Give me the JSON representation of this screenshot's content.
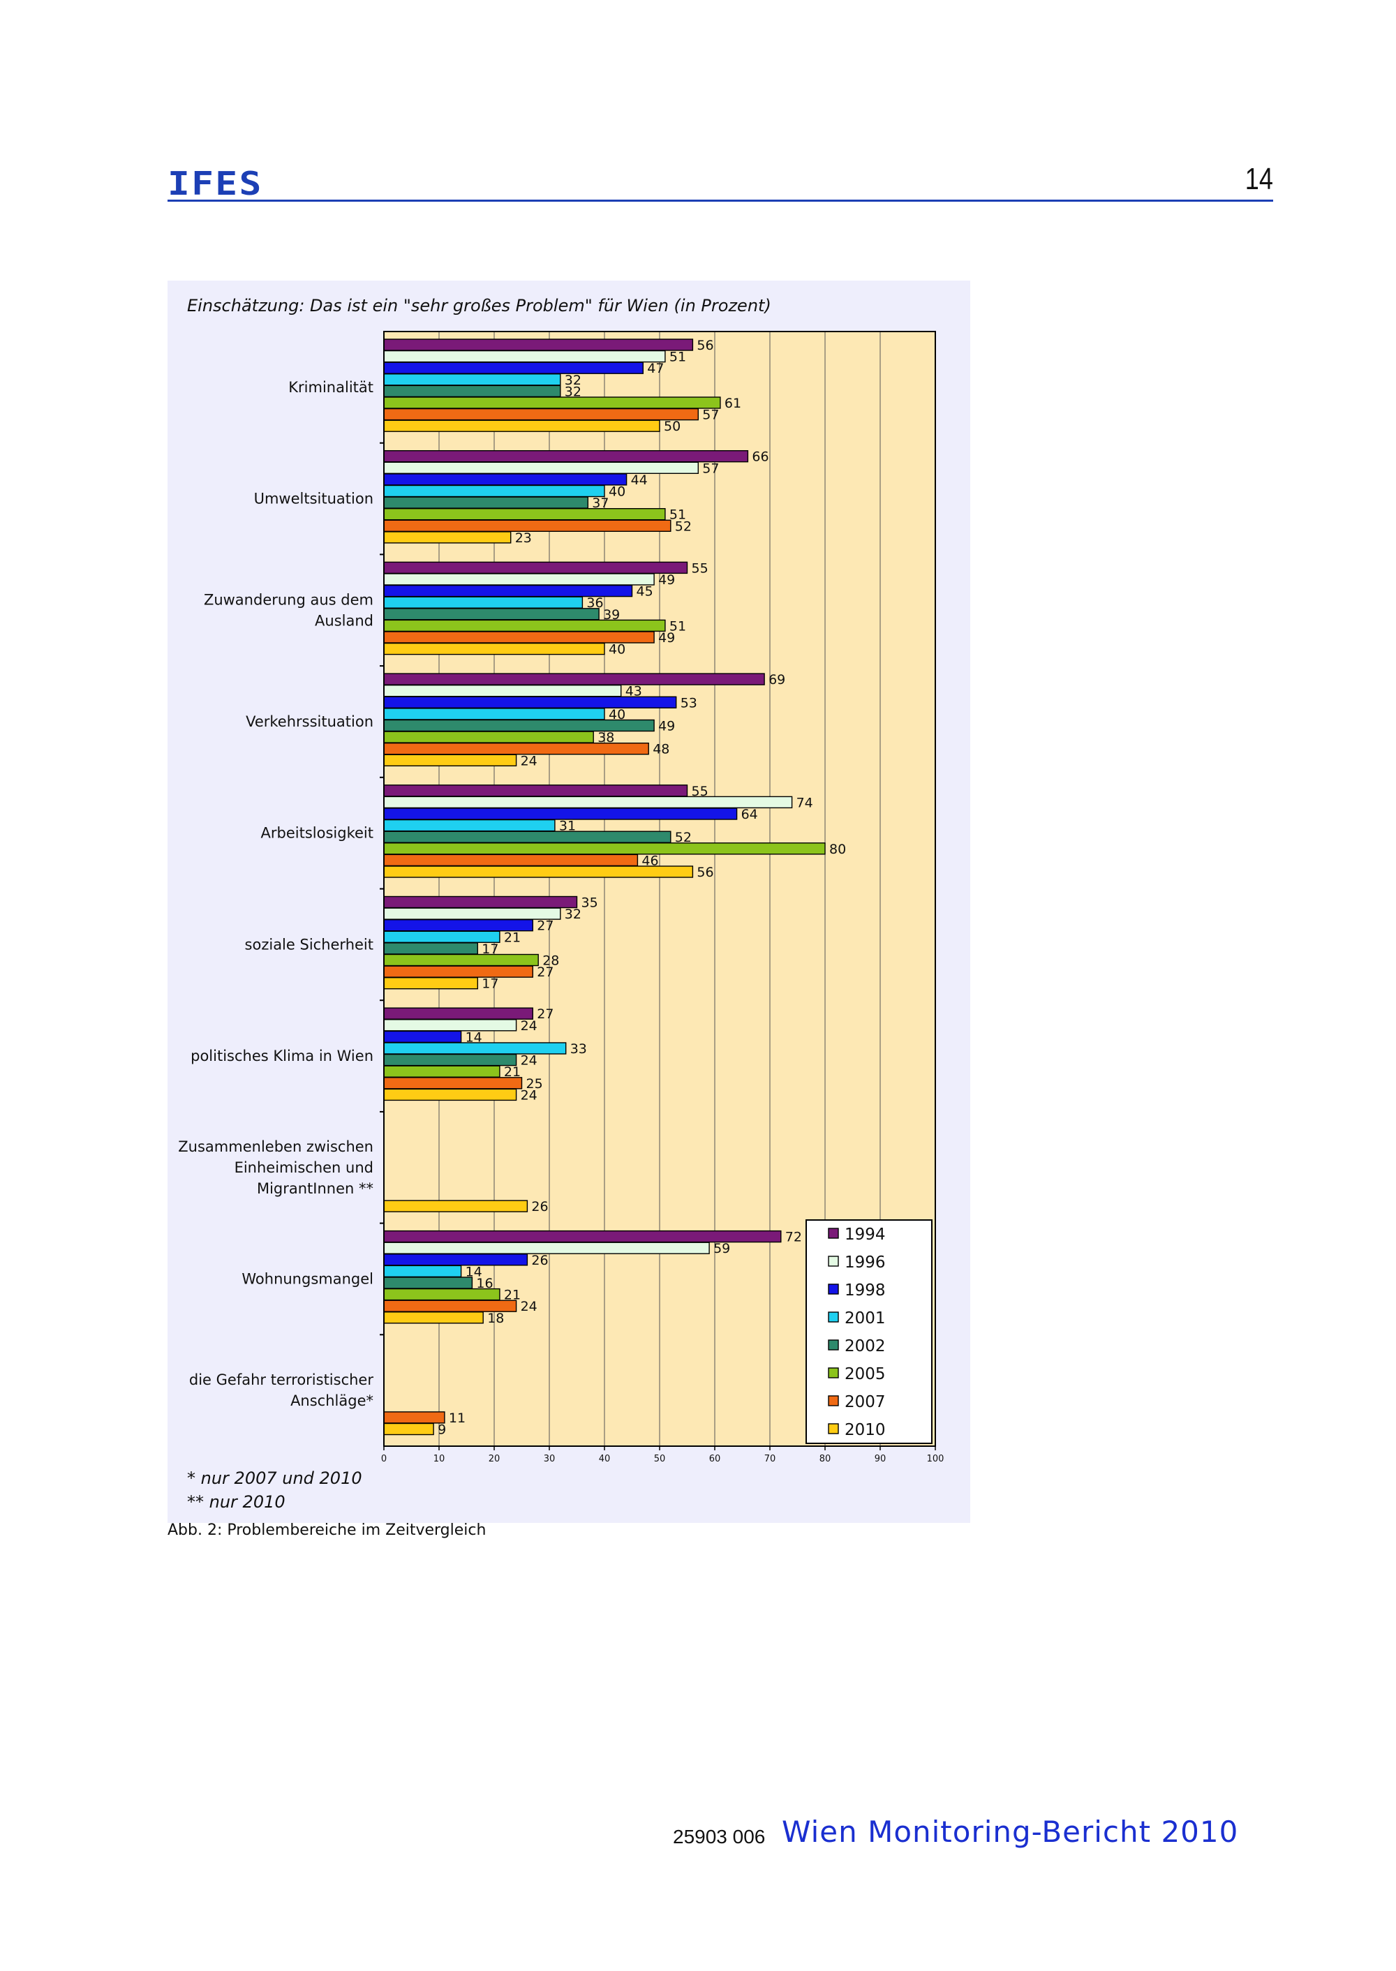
{
  "header": {
    "logo_text": "IFES",
    "page_number": "14"
  },
  "figure": {
    "title": "Einschätzung: Das ist ein \"sehr großes Problem\" für Wien (in Prozent)",
    "notes": [
      "* nur 2007 und 2010",
      "** nur 2010"
    ],
    "caption": "Abb. 2: Problembereiche im Zeitvergleich"
  },
  "footer": {
    "code": "25903 006",
    "title": "Wien Monitoring-Bericht 2010"
  },
  "colors": {
    "1994": "#7a1a78",
    "1996": "#e4fae4",
    "1998": "#1414e8",
    "2001": "#1fd0f0",
    "2002": "#2e8a6c",
    "2005": "#8cc41c",
    "2007": "#f06a14",
    "2010": "#ffcc14",
    "plot_bg": "#fde8b4",
    "panel_bg": "#eeeefc"
  },
  "chart_data": {
    "type": "bar",
    "orientation": "horizontal",
    "title": "Einschätzung: Das ist ein \"sehr großes Problem\" für Wien (in Prozent)",
    "xlabel": "",
    "ylabel": "",
    "xlim": [
      0,
      100
    ],
    "xticks": [
      0,
      10,
      20,
      30,
      40,
      50,
      60,
      70,
      80,
      90,
      100
    ],
    "grid": true,
    "legend_position": "bottom-right",
    "categories": [
      "Kriminalität",
      "Umweltsituation",
      "Zuwanderung aus dem Ausland",
      "Verkehrssituation",
      "Arbeitslosigkeit",
      "soziale Sicherheit",
      "politisches Klima in Wien",
      "Zusammenleben zwischen Einheimischen und MigrantInnen **",
      "Wohnungsmangel",
      "die Gefahr terroristischer Anschläge*"
    ],
    "category_lines": [
      [
        "Kriminalität"
      ],
      [
        "Umweltsituation"
      ],
      [
        "Zuwanderung aus dem",
        "Ausland"
      ],
      [
        "Verkehrssituation"
      ],
      [
        "Arbeitslosigkeit"
      ],
      [
        "soziale Sicherheit"
      ],
      [
        "politisches Klima in Wien"
      ],
      [
        "Zusammenleben zwischen",
        "Einheimischen und",
        "MigrantInnen **"
      ],
      [
        "Wohnungsmangel"
      ],
      [
        "die Gefahr terroristischer",
        "Anschläge*"
      ]
    ],
    "series": [
      {
        "name": "1994",
        "values": [
          56,
          66,
          55,
          69,
          55,
          35,
          27,
          null,
          72,
          null
        ]
      },
      {
        "name": "1996",
        "values": [
          51,
          57,
          49,
          43,
          74,
          32,
          24,
          null,
          59,
          null
        ]
      },
      {
        "name": "1998",
        "values": [
          47,
          44,
          45,
          53,
          64,
          27,
          14,
          null,
          26,
          null
        ]
      },
      {
        "name": "2001",
        "values": [
          32,
          40,
          36,
          40,
          31,
          21,
          33,
          null,
          14,
          null
        ]
      },
      {
        "name": "2002",
        "values": [
          32,
          37,
          39,
          49,
          52,
          17,
          24,
          null,
          16,
          null
        ]
      },
      {
        "name": "2005",
        "values": [
          61,
          51,
          51,
          38,
          80,
          28,
          21,
          null,
          21,
          null
        ]
      },
      {
        "name": "2007",
        "values": [
          57,
          52,
          49,
          48,
          46,
          27,
          25,
          null,
          24,
          11
        ]
      },
      {
        "name": "2010",
        "values": [
          50,
          23,
          40,
          24,
          56,
          17,
          24,
          26,
          18,
          9
        ]
      }
    ]
  }
}
